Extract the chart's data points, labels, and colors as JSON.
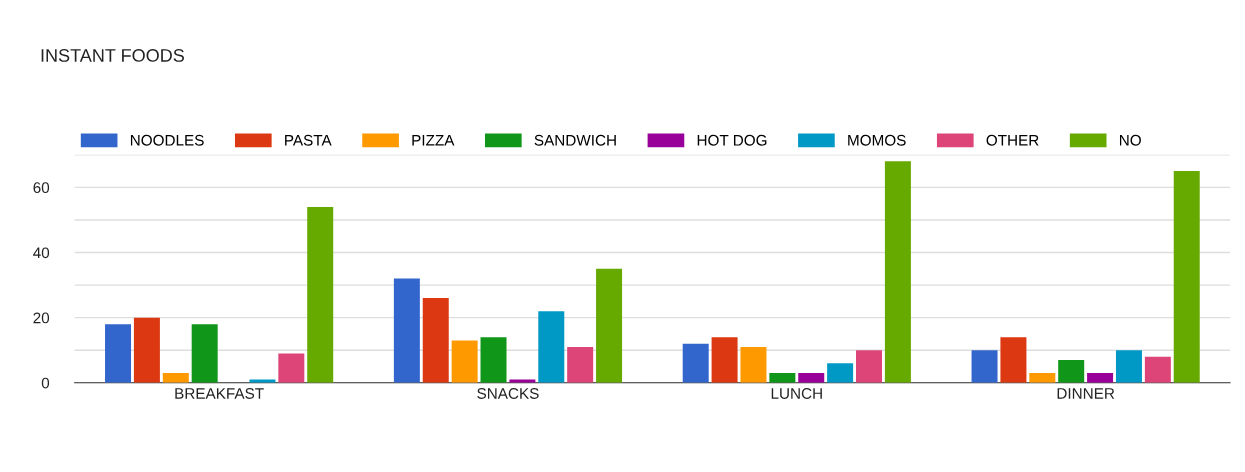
{
  "chart_data": {
    "type": "bar",
    "title": "INSTANT FOODS",
    "categories": [
      "BREAKFAST",
      "SNACKS",
      "LUNCH",
      "DINNER"
    ],
    "series": [
      {
        "name": "NOODLES",
        "color": "#3366cc",
        "values": [
          18,
          32,
          12,
          10
        ]
      },
      {
        "name": "PASTA",
        "color": "#dc3912",
        "values": [
          20,
          26,
          14,
          14
        ]
      },
      {
        "name": "PIZZA",
        "color": "#ff9900",
        "values": [
          3,
          13,
          11,
          3
        ]
      },
      {
        "name": "SANDWICH",
        "color": "#109618",
        "values": [
          18,
          14,
          3,
          7
        ]
      },
      {
        "name": "HOT DOG",
        "color": "#990099",
        "values": [
          0,
          1,
          3,
          3
        ]
      },
      {
        "name": "MOMOS",
        "color": "#0099c6",
        "values": [
          1,
          22,
          6,
          10
        ]
      },
      {
        "name": "OTHER",
        "color": "#dd4477",
        "values": [
          9,
          11,
          10,
          8
        ]
      },
      {
        "name": "NO",
        "color": "#66aa00",
        "values": [
          54,
          35,
          68,
          65
        ]
      }
    ],
    "ylim": [
      0,
      70
    ],
    "yticks": [
      0,
      {
        "value": 10,
        "label": null
      },
      20,
      {
        "value": 30,
        "label": null
      },
      40,
      {
        "value": 50,
        "label": null
      },
      60,
      {
        "value": 70,
        "label": null
      }
    ],
    "grid": "y",
    "legend": "top left"
  }
}
